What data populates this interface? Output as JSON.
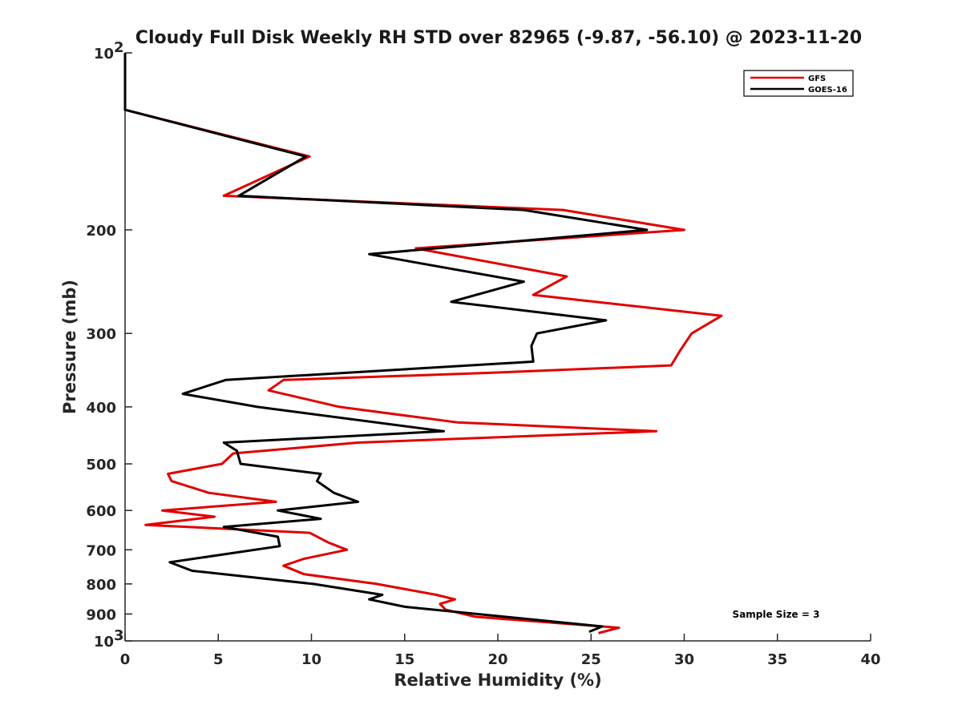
{
  "chart_data": {
    "type": "line",
    "title": "Cloudy Full Disk Weekly RH STD over 82965 (-9.87, -56.10) @ 2023-11-20",
    "xlabel": "Relative Humidity (%)",
    "ylabel": "Pressure (mb)",
    "xlim": [
      0,
      40
    ],
    "ylim": [
      1000,
      100
    ],
    "y_scale": "log",
    "grid": false,
    "legend_position": "top-right",
    "x_ticks": [
      "0",
      "5",
      "10",
      "15",
      "20",
      "25",
      "30",
      "35",
      "40"
    ],
    "y_ticks": [
      {
        "value": 100,
        "label": "10",
        "sup": "2"
      },
      {
        "value": 200,
        "label": "200"
      },
      {
        "value": 300,
        "label": "300"
      },
      {
        "value": 400,
        "label": "400"
      },
      {
        "value": 500,
        "label": "500"
      },
      {
        "value": 600,
        "label": "600"
      },
      {
        "value": 700,
        "label": "700"
      },
      {
        "value": 800,
        "label": "800"
      },
      {
        "value": 900,
        "label": "900"
      },
      {
        "value": 1000,
        "label": "10",
        "sup": "3"
      }
    ],
    "annotation": "Sample Size = 3",
    "series": [
      {
        "name": "GFS",
        "color": "#e00000",
        "points": [
          [
            0,
            100
          ],
          [
            0,
            125
          ],
          [
            9.9,
            150
          ],
          [
            5.3,
            175
          ],
          [
            23.5,
            185
          ],
          [
            30.0,
            200
          ],
          [
            15.6,
            215
          ],
          [
            23.7,
            240
          ],
          [
            21.9,
            258
          ],
          [
            32.0,
            280
          ],
          [
            30.4,
            300
          ],
          [
            29.8,
            320
          ],
          [
            29.3,
            340
          ],
          [
            19.7,
            350
          ],
          [
            8.5,
            360
          ],
          [
            7.7,
            375
          ],
          [
            11.5,
            400
          ],
          [
            17.8,
            425
          ],
          [
            28.5,
            440
          ],
          [
            12.5,
            460
          ],
          [
            5.8,
            480
          ],
          [
            5.2,
            500
          ],
          [
            2.3,
            520
          ],
          [
            2.5,
            535
          ],
          [
            4.5,
            560
          ],
          [
            8.1,
            580
          ],
          [
            2.0,
            600
          ],
          [
            4.8,
            615
          ],
          [
            1.1,
            635
          ],
          [
            9.9,
            655
          ],
          [
            10.9,
            680
          ],
          [
            11.9,
            700
          ],
          [
            9.6,
            725
          ],
          [
            8.5,
            745
          ],
          [
            9.6,
            770
          ],
          [
            13.5,
            800
          ],
          [
            16.7,
            835
          ],
          [
            17.7,
            850
          ],
          [
            16.9,
            865
          ],
          [
            17.2,
            885
          ],
          [
            18.8,
            910
          ],
          [
            26.5,
            950
          ],
          [
            25.4,
            970
          ]
        ]
      },
      {
        "name": "GOES-16",
        "color": "#000000",
        "points": [
          [
            0,
            100
          ],
          [
            0,
            125
          ],
          [
            9.7,
            150
          ],
          [
            6.1,
            175
          ],
          [
            21.4,
            185
          ],
          [
            28.0,
            200
          ],
          [
            13.1,
            220
          ],
          [
            21.4,
            245
          ],
          [
            17.5,
            265
          ],
          [
            25.8,
            285
          ],
          [
            22.1,
            300
          ],
          [
            21.8,
            315
          ],
          [
            21.9,
            335
          ],
          [
            5.4,
            360
          ],
          [
            3.1,
            380
          ],
          [
            7.1,
            400
          ],
          [
            17.1,
            440
          ],
          [
            5.3,
            460
          ],
          [
            6.0,
            475
          ],
          [
            6.2,
            500
          ],
          [
            10.5,
            520
          ],
          [
            10.3,
            535
          ],
          [
            11.2,
            560
          ],
          [
            12.5,
            580
          ],
          [
            8.2,
            600
          ],
          [
            10.5,
            620
          ],
          [
            5.3,
            640
          ],
          [
            8.2,
            665
          ],
          [
            8.3,
            690
          ],
          [
            2.4,
            735
          ],
          [
            3.6,
            760
          ],
          [
            10.1,
            800
          ],
          [
            13.8,
            835
          ],
          [
            13.1,
            850
          ],
          [
            15.0,
            875
          ],
          [
            25.6,
            945
          ],
          [
            24.9,
            965
          ]
        ]
      }
    ]
  }
}
